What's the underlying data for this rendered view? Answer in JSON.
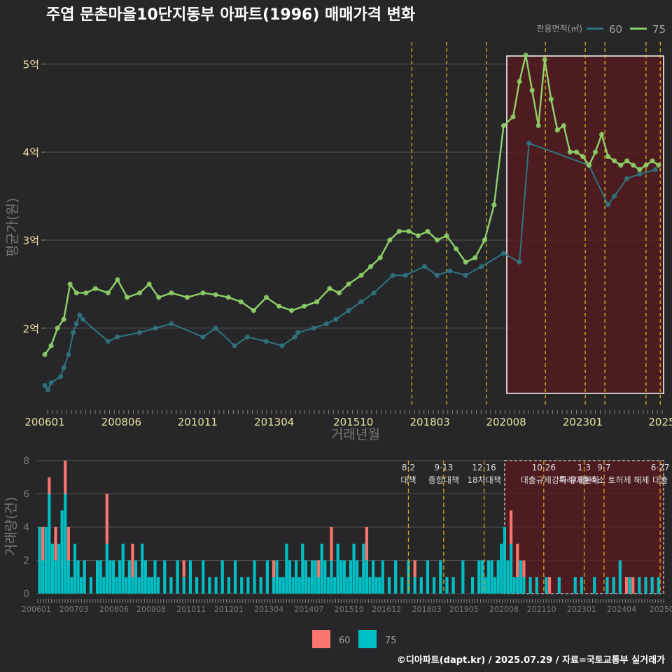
{
  "title": "주엽 문촌마을10단지동부 아파트(1996) 매매가격 변화",
  "caption": "©디아파트(dapt.kr) / 2025.07.29 / 자료=국토교통부 실거래가",
  "colors": {
    "bg": "#272729",
    "s60": "#2e7680",
    "s75": "#8ed268",
    "bar60": "#f8766d",
    "bar75": "#00bfc4",
    "policy": "#e6c21a",
    "highlight": "#5a1a1d"
  },
  "chart_data": [
    {
      "type": "line",
      "title": "주엽 문촌마을10단지동부 아파트(1996) 매매가격 변화",
      "xlabel": "거래년월",
      "ylabel": "평균가(원)",
      "x_range": [
        2006.0,
        2025.6
      ],
      "ylim": [
        1.1,
        5.25
      ],
      "x_ticks": [
        {
          "x": 2006.0,
          "label": "200601"
        },
        {
          "x": 2008.42,
          "label": "200806"
        },
        {
          "x": 2010.83,
          "label": "201011"
        },
        {
          "x": 2013.25,
          "label": "201304"
        },
        {
          "x": 2015.75,
          "label": "201510"
        },
        {
          "x": 2018.17,
          "label": "201803"
        },
        {
          "x": 2020.58,
          "label": "202008"
        },
        {
          "x": 2023.0,
          "label": "202301"
        },
        {
          "x": 2025.5,
          "label": "2025"
        }
      ],
      "y_ticks": [
        {
          "v": 2,
          "label": "2억"
        },
        {
          "v": 3,
          "label": "3억"
        },
        {
          "v": 4,
          "label": "4억"
        },
        {
          "v": 5,
          "label": "5억"
        }
      ],
      "legend_title": "전용면적(㎡)",
      "highlight_range": [
        2020.6,
        2025.6
      ],
      "policy_lines": [
        2017.6,
        2018.7,
        2019.96,
        2021.82,
        2023.08,
        2023.7,
        2025.0,
        2025.45
      ],
      "series": [
        {
          "name": "60",
          "x": [
            2006.0,
            2006.1,
            2006.2,
            2006.5,
            2006.6,
            2006.75,
            2006.9,
            2007.0,
            2007.1,
            2007.2,
            2008.0,
            2008.3,
            2009.0,
            2009.5,
            2010.0,
            2011.0,
            2011.4,
            2012.0,
            2012.4,
            2013.0,
            2013.5,
            2013.9,
            2014.0,
            2014.5,
            2014.9,
            2015.2,
            2015.6,
            2016.0,
            2016.4,
            2017.0,
            2017.4,
            2018.0,
            2018.4,
            2018.8,
            2019.3,
            2019.8,
            2020.5,
            2021.0,
            2021.3,
            2023.2,
            2023.8,
            2024.0,
            2024.4,
            2024.8,
            2025.3
          ],
          "values": [
            1.35,
            1.3,
            1.38,
            1.45,
            1.55,
            1.7,
            1.95,
            2.05,
            2.15,
            2.1,
            1.85,
            1.9,
            1.95,
            2.0,
            2.05,
            1.9,
            2.0,
            1.8,
            1.9,
            1.85,
            1.8,
            1.9,
            1.95,
            2.0,
            2.05,
            2.1,
            2.2,
            2.3,
            2.4,
            2.6,
            2.6,
            2.7,
            2.6,
            2.65,
            2.6,
            2.7,
            2.85,
            2.75,
            4.1,
            3.85,
            3.4,
            3.5,
            3.7,
            3.75,
            3.8
          ]
        },
        {
          "name": "75",
          "x": [
            2006.0,
            2006.2,
            2006.4,
            2006.6,
            2006.8,
            2007.0,
            2007.3,
            2007.6,
            2008.0,
            2008.3,
            2008.6,
            2009.0,
            2009.3,
            2009.6,
            2010.0,
            2010.5,
            2011.0,
            2011.4,
            2011.8,
            2012.2,
            2012.6,
            2013.0,
            2013.4,
            2013.8,
            2014.2,
            2014.6,
            2015.0,
            2015.3,
            2015.6,
            2016.0,
            2016.3,
            2016.6,
            2016.9,
            2017.2,
            2017.5,
            2017.8,
            2018.1,
            2018.4,
            2018.7,
            2019.0,
            2019.3,
            2019.6,
            2019.9,
            2020.2,
            2020.5,
            2020.8,
            2021.0,
            2021.2,
            2021.4,
            2021.6,
            2021.8,
            2022.0,
            2022.2,
            2022.4,
            2022.6,
            2022.8,
            2023.0,
            2023.2,
            2023.4,
            2023.6,
            2023.8,
            2024.0,
            2024.2,
            2024.4,
            2024.6,
            2024.8,
            2025.0,
            2025.2,
            2025.4
          ],
          "values": [
            1.7,
            1.8,
            2.0,
            2.1,
            2.5,
            2.4,
            2.4,
            2.45,
            2.4,
            2.55,
            2.35,
            2.4,
            2.5,
            2.35,
            2.4,
            2.35,
            2.4,
            2.38,
            2.35,
            2.3,
            2.2,
            2.35,
            2.25,
            2.2,
            2.25,
            2.3,
            2.45,
            2.4,
            2.5,
            2.6,
            2.7,
            2.8,
            3.0,
            3.1,
            3.1,
            3.05,
            3.1,
            3.0,
            3.05,
            2.9,
            2.75,
            2.8,
            3.0,
            3.4,
            4.3,
            4.4,
            4.8,
            5.1,
            4.7,
            4.3,
            5.05,
            4.6,
            4.25,
            4.3,
            4.0,
            4.0,
            3.95,
            3.85,
            4.0,
            4.2,
            3.95,
            3.9,
            3.85,
            3.9,
            3.85,
            3.8,
            3.85,
            3.9,
            3.85
          ]
        }
      ]
    },
    {
      "type": "bar",
      "ylabel": "거래량(건)",
      "ylim": [
        0,
        8
      ],
      "y_ticks": [
        0,
        2,
        4,
        6,
        8
      ],
      "x_range": [
        2006.0,
        2025.6
      ],
      "x_ticks": [
        {
          "x": 2006.0,
          "label": "200601"
        },
        {
          "x": 2007.17,
          "label": "200703"
        },
        {
          "x": 2008.42,
          "label": "200806"
        },
        {
          "x": 2009.58,
          "label": "200908"
        },
        {
          "x": 2010.83,
          "label": "201011"
        },
        {
          "x": 2012.0,
          "label": "201201"
        },
        {
          "x": 2013.25,
          "label": "201304"
        },
        {
          "x": 2014.5,
          "label": "201407"
        },
        {
          "x": 2015.75,
          "label": "201510"
        },
        {
          "x": 2016.92,
          "label": "201612"
        },
        {
          "x": 2018.17,
          "label": "201803"
        },
        {
          "x": 2019.33,
          "label": "201905"
        },
        {
          "x": 2020.58,
          "label": "202008"
        },
        {
          "x": 2021.75,
          "label": "202110"
        },
        {
          "x": 2023.0,
          "label": "202301"
        },
        {
          "x": 2024.25,
          "label": "202404"
        },
        {
          "x": 2025.5,
          "label": "20250"
        }
      ],
      "legend": [
        "60",
        "75"
      ],
      "highlight_range": [
        2020.6,
        2025.6
      ],
      "policy_lines": [
        {
          "x": 2017.6,
          "label": "8·2 대책"
        },
        {
          "x": 2018.7,
          "label": "9·13 종합대책"
        },
        {
          "x": 2019.96,
          "label": "12·16 18차대책"
        },
        {
          "x": 2021.82,
          "label": "10·26 대출규제강화"
        },
        {
          "x": 2023.08,
          "label": "1·3 규제완화"
        },
        {
          "x": 2023.7,
          "label": "9·7 특례대출축소 토허제 해제"
        },
        {
          "x": 2025.45,
          "label": "6·27 대출"
        }
      ],
      "series": [
        {
          "name": "75",
          "x": [
            2006.1,
            2006.2,
            2006.3,
            2006.4,
            2006.5,
            2006.6,
            2006.7,
            2006.8,
            2006.9,
            2007.0,
            2007.1,
            2007.2,
            2007.3,
            2007.4,
            2007.5,
            2007.7,
            2007.9,
            2008.0,
            2008.1,
            2008.2,
            2008.3,
            2008.4,
            2008.5,
            2008.6,
            2008.7,
            2008.8,
            2008.9,
            2009.0,
            2009.1,
            2009.2,
            2009.3,
            2009.4,
            2009.5,
            2009.6,
            2009.7,
            2009.8,
            2010.0,
            2010.2,
            2010.4,
            2010.6,
            2010.8,
            2011.0,
            2011.2,
            2011.4,
            2011.6,
            2011.8,
            2012.0,
            2012.2,
            2012.4,
            2012.6,
            2012.8,
            2013.0,
            2013.2,
            2013.4,
            2013.5,
            2013.6,
            2013.7,
            2013.8,
            2013.9,
            2014.0,
            2014.1,
            2014.2,
            2014.3,
            2014.4,
            2014.5,
            2014.6,
            2014.7,
            2014.8,
            2014.9,
            2015.0,
            2015.1,
            2015.2,
            2015.3,
            2015.4,
            2015.5,
            2015.6,
            2015.7,
            2015.8,
            2015.9,
            2016.0,
            2016.1,
            2016.2,
            2016.3,
            2016.4,
            2016.5,
            2016.6,
            2016.7,
            2016.8,
            2017.0,
            2017.2,
            2017.4,
            2017.6,
            2017.8,
            2018.0,
            2018.2,
            2018.4,
            2018.6,
            2018.8,
            2019.0,
            2019.3,
            2019.6,
            2019.8,
            2019.9,
            2020.0,
            2020.1,
            2020.2,
            2020.3,
            2020.4,
            2020.5,
            2020.6,
            2020.7,
            2020.8,
            2020.9,
            2021.0,
            2021.1,
            2021.2,
            2021.4,
            2021.6,
            2021.9,
            2022.3,
            2022.8,
            2023.0,
            2023.4,
            2023.8,
            2024.0,
            2024.2,
            2024.5,
            2024.8,
            2025.0,
            2025.2,
            2025.4
          ],
          "values": [
            4,
            2,
            4,
            6,
            3,
            2,
            3,
            5,
            6,
            2,
            1,
            3,
            2,
            1,
            2,
            1,
            2,
            2,
            1,
            3,
            2,
            2,
            1,
            2,
            3,
            1,
            2,
            1,
            2,
            1,
            3,
            2,
            1,
            1,
            2,
            1,
            2,
            1,
            2,
            1,
            2,
            1,
            2,
            1,
            1,
            2,
            1,
            2,
            1,
            1,
            2,
            1,
            2,
            1,
            2,
            1,
            1,
            3,
            2,
            1,
            2,
            1,
            3,
            2,
            1,
            2,
            2,
            1,
            3,
            2,
            1,
            2,
            1,
            3,
            2,
            2,
            1,
            2,
            3,
            2,
            1,
            3,
            2,
            1,
            2,
            1,
            1,
            2,
            1,
            2,
            1,
            2,
            1,
            1,
            2,
            1,
            2,
            1,
            1,
            2,
            1,
            2,
            2,
            1,
            2,
            2,
            1,
            2,
            3,
            4,
            2,
            3,
            1,
            1,
            2,
            1,
            1,
            1,
            1,
            1,
            1,
            1,
            1,
            1,
            1,
            2,
            1,
            1,
            1,
            1,
            1
          ]
        },
        {
          "name": "60",
          "x": [
            2006.2,
            2006.4,
            2006.6,
            2006.9,
            2007.0,
            2008.2,
            2009.0,
            2010.6,
            2013.4,
            2014.8,
            2015.2,
            2016.3,
            2017.8,
            2020.8,
            2021.0,
            2021.2,
            2022.0,
            2024.4,
            2024.6
          ],
          "values": [
            2,
            1,
            2,
            2,
            2,
            3,
            2,
            1,
            1,
            1,
            2,
            2,
            1,
            2,
            2,
            1,
            1,
            1,
            1
          ]
        }
      ]
    }
  ]
}
